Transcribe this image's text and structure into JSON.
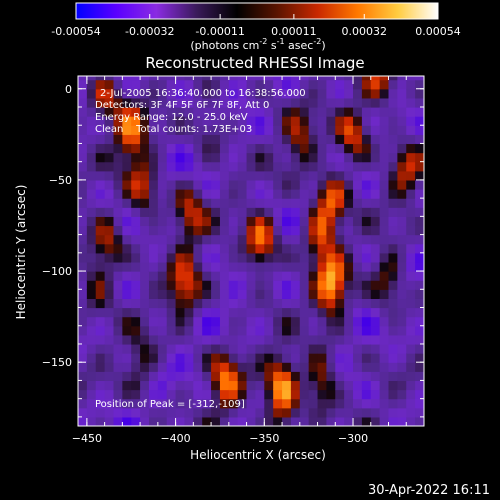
{
  "colorbar": {
    "ticks": [
      "-0.00054",
      "-0.00032",
      "-0.00011",
      "0.00011",
      "0.00032",
      "0.00054"
    ],
    "tick_values": [
      -0.00054,
      -0.00032,
      -0.00011,
      0.00011,
      0.00032,
      0.00054
    ],
    "range": [
      -0.00054,
      0.00054
    ],
    "unit_label": "(photons cm",
    "unit_sup1": "-2",
    "unit_mid": " s",
    "unit_sup2": "-1",
    "unit_end": " asec",
    "unit_sup3": "-2",
    "unit_close": ")",
    "colors": [
      "#0000ff",
      "#5a00ff",
      "#8a2be2",
      "#3a1a5a",
      "#000000",
      "#5a1400",
      "#c82800",
      "#ff7800",
      "#ffcc40",
      "#ffffff"
    ]
  },
  "chart_data": {
    "type": "heatmap",
    "title": "Reconstructed RHESSI Image",
    "xlabel": "Heliocentric X (arcsec)",
    "ylabel": "Heliocentric Y (arcsec)",
    "xlim": [
      -455,
      -260
    ],
    "ylim": [
      -185,
      7
    ],
    "x_ticks": [
      -450,
      -400,
      -350,
      -300
    ],
    "y_ticks": [
      0,
      -50,
      -100,
      -150
    ],
    "peak": [
      -312,
      -109
    ],
    "sources": [
      {
        "x": -425,
        "y": -25,
        "peak": 0.00045
      },
      {
        "x": -440,
        "y": -5,
        "peak": 0.0003
      },
      {
        "x": -418,
        "y": -55,
        "peak": 0.00035
      },
      {
        "x": -438,
        "y": -85,
        "peak": 0.0003
      },
      {
        "x": -445,
        "y": -105,
        "peak": 0.00025
      },
      {
        "x": -392,
        "y": -70,
        "peak": 0.00035
      },
      {
        "x": -395,
        "y": -110,
        "peak": 0.00042
      },
      {
        "x": -352,
        "y": -85,
        "peak": 0.00048
      },
      {
        "x": -312,
        "y": -109,
        "peak": 0.00054
      },
      {
        "x": -318,
        "y": -80,
        "peak": 0.0004
      },
      {
        "x": -312,
        "y": -60,
        "peak": 0.00038
      },
      {
        "x": -330,
        "y": -28,
        "peak": 0.0003
      },
      {
        "x": -300,
        "y": -25,
        "peak": 0.0004
      },
      {
        "x": -285,
        "y": 5,
        "peak": 0.00035
      },
      {
        "x": -270,
        "y": -45,
        "peak": 0.0003
      },
      {
        "x": -340,
        "y": -160,
        "peak": 0.00042
      },
      {
        "x": -372,
        "y": -160,
        "peak": 0.00045
      },
      {
        "x": -318,
        "y": -160,
        "peak": 0.00038
      },
      {
        "x": -340,
        "y": -182,
        "peak": 0.0003
      },
      {
        "x": -420,
        "y": -150,
        "peak": 0.00025
      },
      {
        "x": -380,
        "y": -20,
        "peak": 0.0002
      },
      {
        "x": -280,
        "y": -105,
        "peak": 0.0003
      }
    ]
  },
  "info": {
    "line1": "2-Jul-2005 16:36:40.000 to 16:38:56.000",
    "line2": "Detectors: 3F 4F 5F 6F 7F 8F, Att 0",
    "line3": "Energy Range: 12.0 - 25.0 keV",
    "line4": "Clean    Total counts: 1.73E+03",
    "peak_label": "Position of Peak = [-312,-109]"
  },
  "footer": {
    "date": "30-Apr-2022 16:11"
  }
}
